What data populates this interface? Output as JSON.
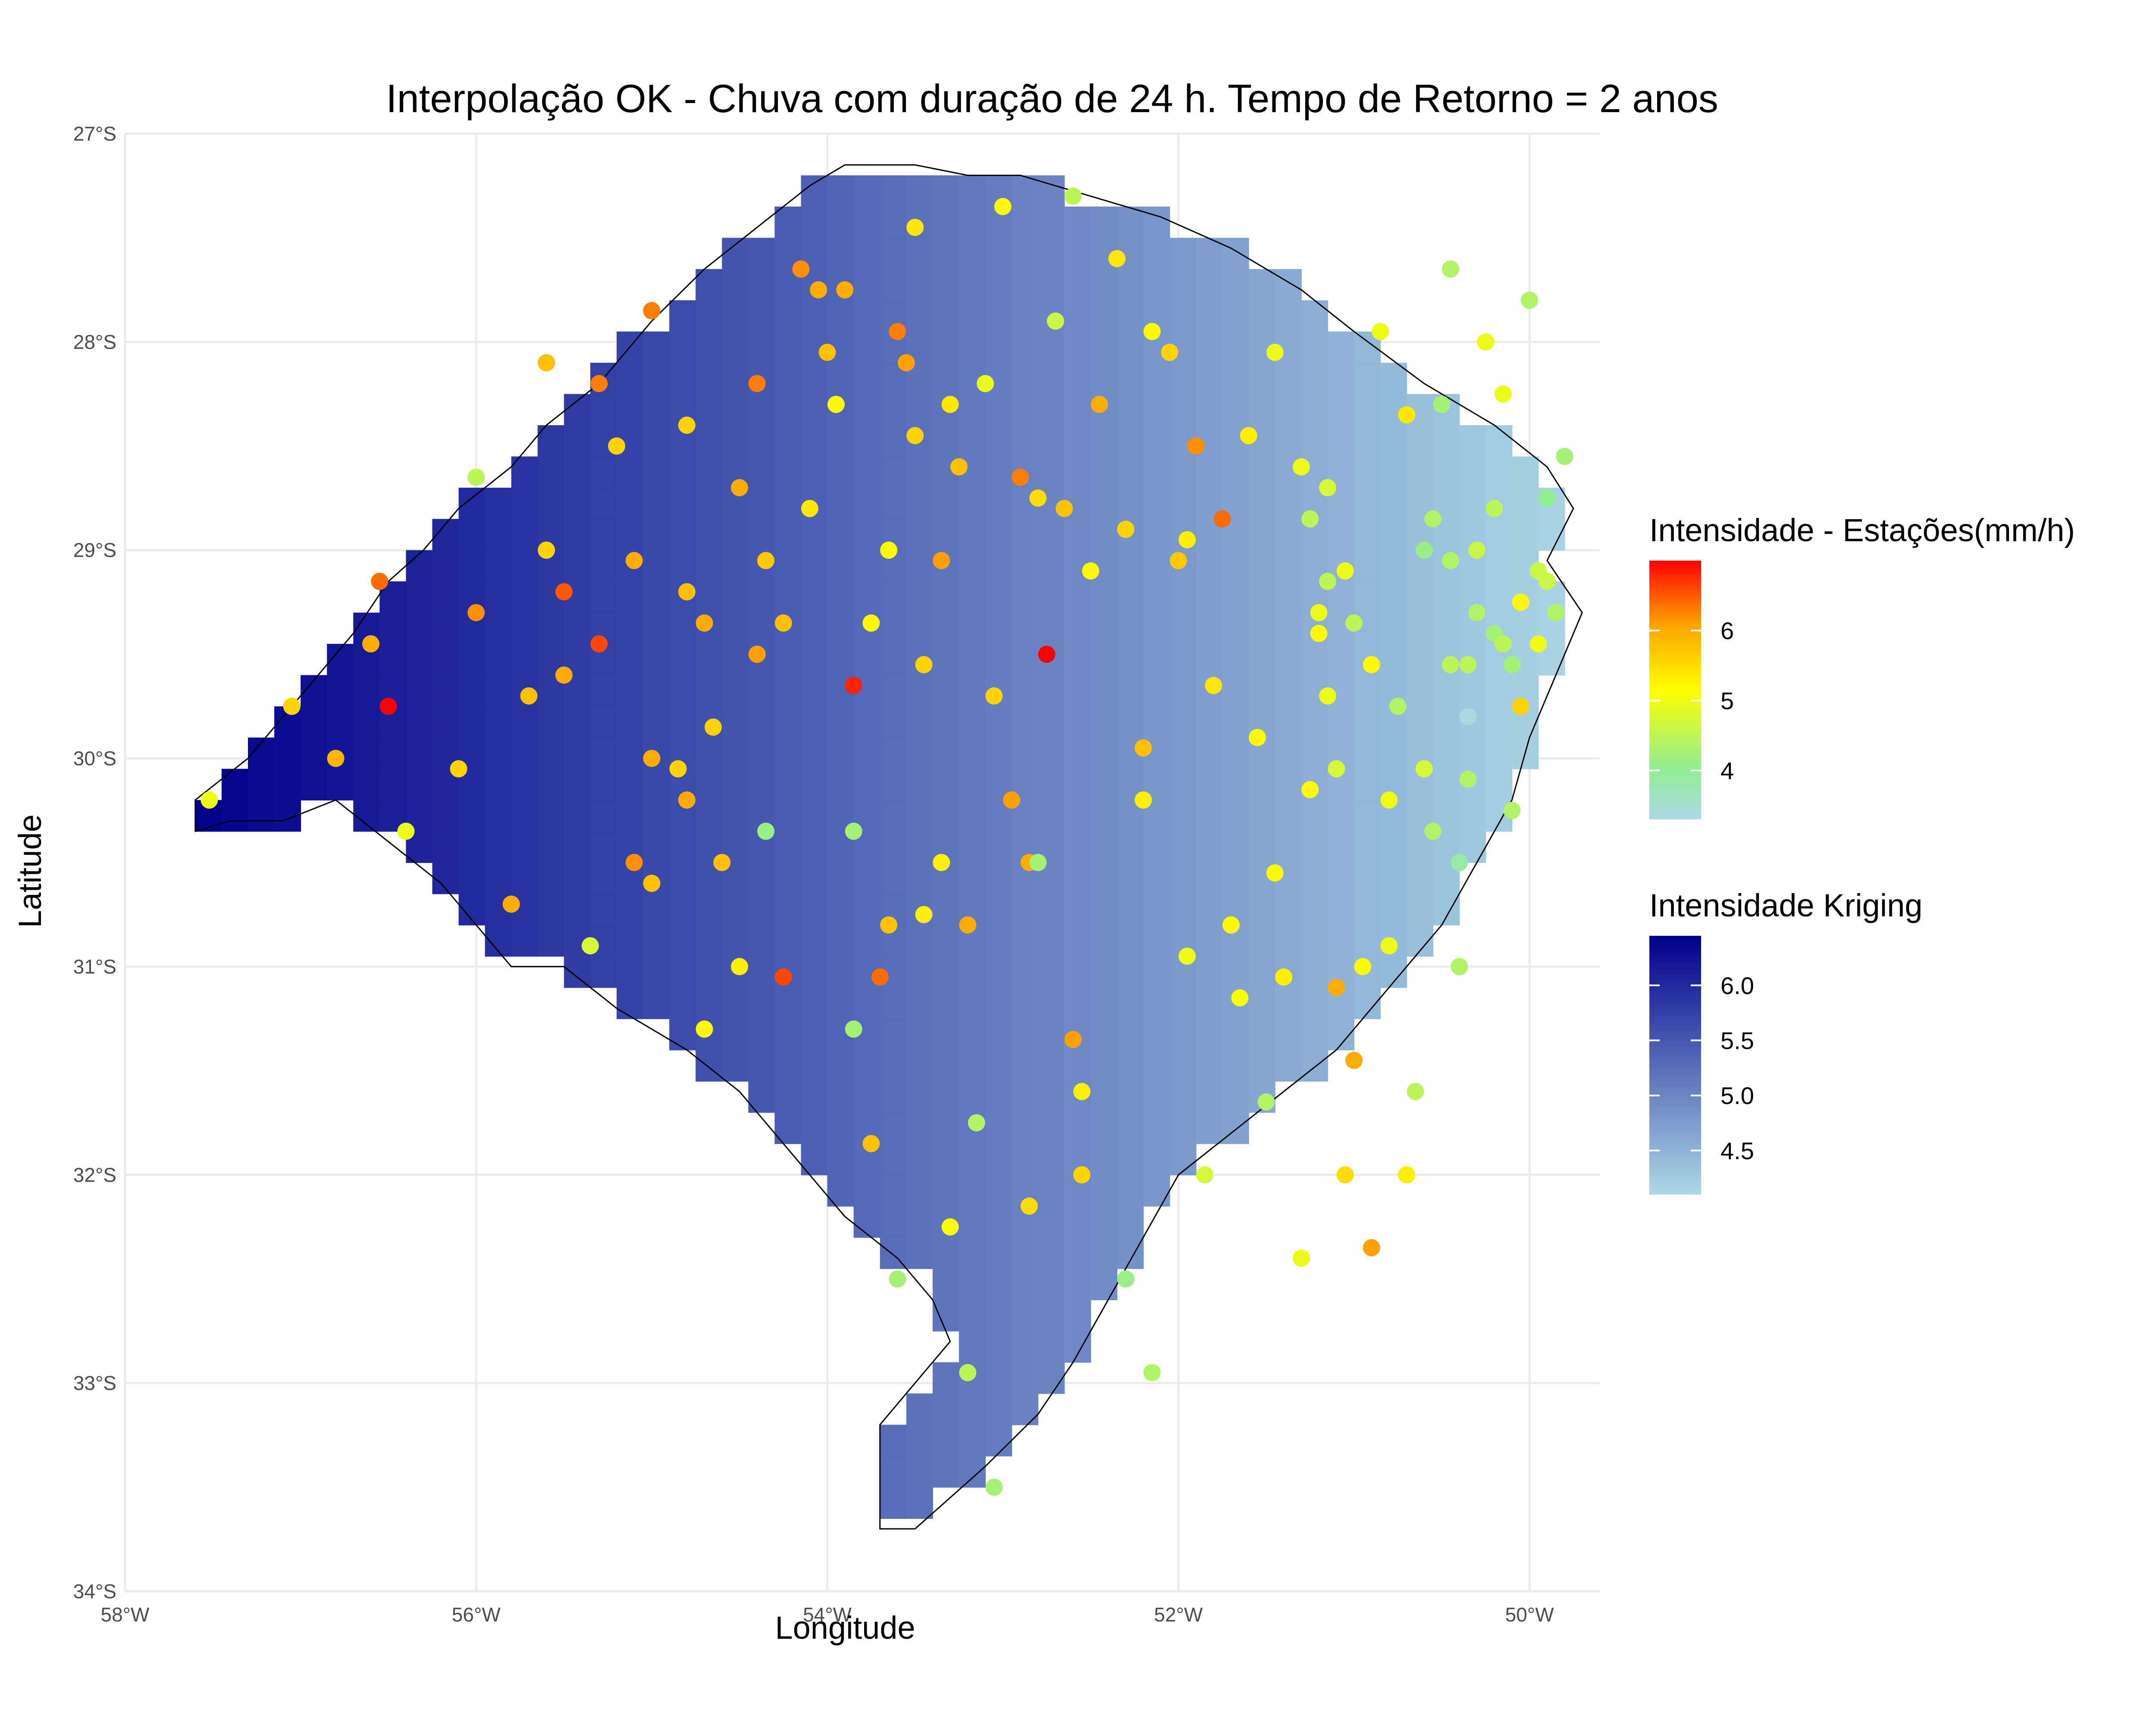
{
  "title": "Interpolação OK - Chuva com duração de 24 h. Tempo de Retorno = 2 anos",
  "chart_data": {
    "type": "map",
    "xlabel": "Longitude",
    "ylabel": "Latitude",
    "xlim": [
      -58,
      -49.6
    ],
    "ylim": [
      -34,
      -27
    ],
    "x_ticks": [
      {
        "value": -58,
        "label": "58°W"
      },
      {
        "value": -56,
        "label": "56°W"
      },
      {
        "value": -54,
        "label": "54°W"
      },
      {
        "value": -52,
        "label": "52°W"
      },
      {
        "value": -50,
        "label": "50°W"
      }
    ],
    "y_ticks": [
      {
        "value": -27,
        "label": "27°S"
      },
      {
        "value": -28,
        "label": "28°S"
      },
      {
        "value": -29,
        "label": "29°S"
      },
      {
        "value": -30,
        "label": "30°S"
      },
      {
        "value": -31,
        "label": "31°S"
      },
      {
        "value": -32,
        "label": "32°S"
      },
      {
        "value": -33,
        "label": "33°S"
      },
      {
        "value": -34,
        "label": "34°S"
      }
    ],
    "grid": true,
    "raster": {
      "name": "Intensidade Kriging",
      "cell_size_deg": 0.15,
      "trend": {
        "west_lon": -57.6,
        "west_value": 6.45,
        "east_lon": -49.7,
        "east_value": 4.1
      },
      "colors": [
        "#00008b",
        "#add8e6"
      ],
      "legend_ticks": [
        6.0,
        5.5,
        5.0,
        4.5
      ],
      "range": [
        4.1,
        6.45
      ],
      "boundary_lonlat": [
        [
          -57.6,
          -30.2
        ],
        [
          -57.3,
          -30.0
        ],
        [
          -57.1,
          -29.8
        ],
        [
          -56.9,
          -29.6
        ],
        [
          -56.7,
          -29.4
        ],
        [
          -56.5,
          -29.15
        ],
        [
          -56.3,
          -29.0
        ],
        [
          -56.1,
          -28.8
        ],
        [
          -55.8,
          -28.6
        ],
        [
          -55.6,
          -28.4
        ],
        [
          -55.3,
          -28.2
        ],
        [
          -55.0,
          -27.9
        ],
        [
          -54.7,
          -27.65
        ],
        [
          -54.4,
          -27.45
        ],
        [
          -54.1,
          -27.25
        ],
        [
          -53.9,
          -27.15
        ],
        [
          -53.5,
          -27.15
        ],
        [
          -53.2,
          -27.2
        ],
        [
          -52.9,
          -27.2
        ],
        [
          -52.5,
          -27.3
        ],
        [
          -52.1,
          -27.4
        ],
        [
          -51.7,
          -27.55
        ],
        [
          -51.3,
          -27.75
        ],
        [
          -51.0,
          -27.95
        ],
        [
          -50.6,
          -28.2
        ],
        [
          -50.2,
          -28.4
        ],
        [
          -49.9,
          -28.6
        ],
        [
          -49.75,
          -28.8
        ],
        [
          -49.9,
          -29.05
        ],
        [
          -49.7,
          -29.3
        ],
        [
          -49.8,
          -29.5
        ],
        [
          -50.0,
          -29.9
        ],
        [
          -50.1,
          -30.2
        ],
        [
          -50.3,
          -30.5
        ],
        [
          -50.5,
          -30.8
        ],
        [
          -50.8,
          -31.1
        ],
        [
          -51.1,
          -31.4
        ],
        [
          -51.4,
          -31.6
        ],
        [
          -51.7,
          -31.8
        ],
        [
          -52.0,
          -32.0
        ],
        [
          -52.2,
          -32.3
        ],
        [
          -52.4,
          -32.6
        ],
        [
          -52.6,
          -32.9
        ],
        [
          -52.8,
          -33.15
        ],
        [
          -53.1,
          -33.4
        ],
        [
          -53.3,
          -33.55
        ],
        [
          -53.5,
          -33.7
        ],
        [
          -53.7,
          -33.7
        ],
        [
          -53.7,
          -33.2
        ],
        [
          -53.5,
          -33.0
        ],
        [
          -53.3,
          -32.8
        ],
        [
          -53.4,
          -32.6
        ],
        [
          -53.6,
          -32.4
        ],
        [
          -53.9,
          -32.2
        ],
        [
          -54.2,
          -31.9
        ],
        [
          -54.5,
          -31.6
        ],
        [
          -54.8,
          -31.4
        ],
        [
          -55.2,
          -31.2
        ],
        [
          -55.5,
          -31.0
        ],
        [
          -55.8,
          -31.0
        ],
        [
          -56.0,
          -30.8
        ],
        [
          -56.2,
          -30.6
        ],
        [
          -56.5,
          -30.4
        ],
        [
          -56.8,
          -30.2
        ],
        [
          -57.1,
          -30.3
        ],
        [
          -57.4,
          -30.3
        ],
        [
          -57.6,
          -30.35
        ]
      ]
    },
    "stations": {
      "name": "Intensidade - Estações(mm/h)",
      "colors": [
        "#add8e6",
        "#90ee90",
        "#ffff00",
        "#ffa500",
        "#ff0000"
      ],
      "range": [
        3.3,
        7.0
      ],
      "legend_ticks": [
        6,
        5,
        4
      ],
      "points": [
        [
          -57.52,
          -30.2,
          5.0
        ],
        [
          -57.05,
          -29.75,
          5.6
        ],
        [
          -56.8,
          -30.0,
          5.9
        ],
        [
          -56.6,
          -29.45,
          6.0
        ],
        [
          -56.5,
          -29.75,
          7.0
        ],
        [
          -56.4,
          -30.35,
          5.0
        ],
        [
          -56.55,
          -29.15,
          6.4
        ],
        [
          -56.0,
          -29.3,
          6.2
        ],
        [
          -56.0,
          -28.65,
          4.6
        ],
        [
          -56.1,
          -30.05,
          5.6
        ],
        [
          -55.8,
          -30.7,
          6.0
        ],
        [
          -55.7,
          -29.7,
          5.8
        ],
        [
          -55.6,
          -29.0,
          5.6
        ],
        [
          -55.5,
          -29.6,
          6.0
        ],
        [
          -55.5,
          -29.2,
          6.5
        ],
        [
          -55.6,
          -28.1,
          5.8
        ],
        [
          -55.3,
          -28.2,
          6.3
        ],
        [
          -55.3,
          -29.45,
          6.6
        ],
        [
          -55.2,
          -28.5,
          5.6
        ],
        [
          -55.1,
          -29.05,
          6.0
        ],
        [
          -55.1,
          -30.5,
          6.2
        ],
        [
          -55.0,
          -27.85,
          6.3
        ],
        [
          -55.0,
          -30.0,
          6.0
        ],
        [
          -54.8,
          -28.4,
          5.6
        ],
        [
          -54.8,
          -29.2,
          5.8
        ],
        [
          -54.8,
          -30.2,
          6.0
        ],
        [
          -54.65,
          -29.85,
          5.6
        ],
        [
          -54.6,
          -30.5,
          5.8
        ],
        [
          -54.7,
          -29.35,
          6.0
        ],
        [
          -54.5,
          -28.7,
          6.0
        ],
        [
          -54.4,
          -29.5,
          6.1
        ],
        [
          -54.5,
          -31.0,
          5.3
        ],
        [
          -54.4,
          -28.2,
          6.3
        ],
        [
          -54.35,
          -29.05,
          5.7
        ],
        [
          -54.25,
          -29.35,
          5.8
        ],
        [
          -54.15,
          -27.65,
          6.2
        ],
        [
          -54.1,
          -28.8,
          5.4
        ],
        [
          -54.05,
          -27.75,
          6.0
        ],
        [
          -54.0,
          -28.05,
          5.8
        ],
        [
          -53.95,
          -28.3,
          5.2
        ],
        [
          -53.9,
          -27.75,
          6.0
        ],
        [
          -53.85,
          -29.65,
          6.8
        ],
        [
          -53.85,
          -30.35,
          4.4
        ],
        [
          -53.85,
          -31.3,
          4.4
        ],
        [
          -53.75,
          -29.35,
          5.2
        ],
        [
          -53.7,
          -31.05,
          6.4
        ],
        [
          -53.65,
          -29.0,
          5.2
        ],
        [
          -53.6,
          -27.95,
          6.3
        ],
        [
          -53.55,
          -28.1,
          6.1
        ],
        [
          -53.5,
          -28.45,
          5.6
        ],
        [
          -53.5,
          -27.45,
          5.4
        ],
        [
          -53.45,
          -30.75,
          5.3
        ],
        [
          -53.35,
          -29.05,
          6.1
        ],
        [
          -53.3,
          -28.3,
          5.4
        ],
        [
          -53.25,
          -28.6,
          5.8
        ],
        [
          -53.2,
          -30.8,
          6.0
        ],
        [
          -53.15,
          -31.75,
          4.5
        ],
        [
          -53.1,
          -28.2,
          5.0
        ],
        [
          -53.05,
          -29.7,
          5.6
        ],
        [
          -53.0,
          -27.35,
          5.2
        ],
        [
          -52.95,
          -30.2,
          6.1
        ],
        [
          -52.9,
          -28.65,
          6.3
        ],
        [
          -52.85,
          -30.5,
          6.0
        ],
        [
          -52.8,
          -30.5,
          4.4
        ],
        [
          -52.8,
          -28.75,
          5.5
        ],
        [
          -52.75,
          -29.5,
          7.0
        ],
        [
          -52.7,
          -27.9,
          4.7
        ],
        [
          -52.65,
          -28.8,
          5.8
        ],
        [
          -52.6,
          -31.35,
          6.1
        ],
        [
          -52.55,
          -32.0,
          5.6
        ],
        [
          -52.5,
          -29.1,
          5.2
        ],
        [
          -52.45,
          -28.3,
          6.0
        ],
        [
          -52.35,
          -27.6,
          5.4
        ],
        [
          -52.3,
          -32.5,
          4.3
        ],
        [
          -52.2,
          -29.95,
          5.8
        ],
        [
          -52.2,
          -30.2,
          5.3
        ],
        [
          -52.15,
          -27.95,
          5.2
        ],
        [
          -52.15,
          -32.95,
          4.5
        ],
        [
          -52.05,
          -28.05,
          5.6
        ],
        [
          -52.0,
          -29.05,
          5.7
        ],
        [
          -51.95,
          -28.95,
          5.3
        ],
        [
          -51.95,
          -30.95,
          5.0
        ],
        [
          -51.9,
          -28.5,
          6.2
        ],
        [
          -51.85,
          -32.0,
          4.8
        ],
        [
          -51.8,
          -29.65,
          5.4
        ],
        [
          -51.75,
          -28.85,
          6.4
        ],
        [
          -51.7,
          -30.8,
          5.2
        ],
        [
          -51.65,
          -31.15,
          5.1
        ],
        [
          -51.6,
          -28.45,
          5.3
        ],
        [
          -51.55,
          -29.9,
          5.2
        ],
        [
          -51.5,
          -31.65,
          4.5
        ],
        [
          -51.45,
          -30.55,
          5.2
        ],
        [
          -51.45,
          -28.05,
          5.0
        ],
        [
          -51.4,
          -31.05,
          5.3
        ],
        [
          -51.3,
          -32.4,
          5.0
        ],
        [
          -51.25,
          -30.15,
          5.2
        ],
        [
          -51.2,
          -29.3,
          5.0
        ],
        [
          -51.15,
          -29.15,
          4.6
        ],
        [
          -51.15,
          -28.7,
          4.8
        ],
        [
          -51.1,
          -31.1,
          6.0
        ],
        [
          -51.05,
          -32.0,
          5.5
        ],
        [
          -51.05,
          -29.1,
          5.0
        ],
        [
          -51.0,
          -31.45,
          6.0
        ],
        [
          -50.95,
          -31.0,
          5.2
        ],
        [
          -50.9,
          -32.35,
          6.1
        ],
        [
          -50.9,
          -29.55,
          5.2
        ],
        [
          -50.85,
          -27.95,
          5.0
        ],
        [
          -50.8,
          -30.2,
          5.0
        ],
        [
          -50.8,
          -30.9,
          5.0
        ],
        [
          -50.75,
          -29.75,
          4.5
        ],
        [
          -50.7,
          -28.35,
          5.4
        ],
        [
          -50.7,
          -32.0,
          5.3
        ],
        [
          -50.65,
          -31.6,
          4.6
        ],
        [
          -50.6,
          -30.05,
          4.8
        ],
        [
          -50.6,
          -29.0,
          4.3
        ],
        [
          -50.55,
          -30.35,
          4.5
        ],
        [
          -50.55,
          -28.85,
          4.5
        ],
        [
          -50.5,
          -28.3,
          4.6
        ],
        [
          -50.45,
          -29.55,
          4.6
        ],
        [
          -50.45,
          -27.65,
          4.5
        ],
        [
          -50.4,
          -31.0,
          4.5
        ],
        [
          -50.4,
          -30.5,
          4.0
        ],
        [
          -50.35,
          -29.8,
          3.4
        ],
        [
          -50.35,
          -30.1,
          4.5
        ],
        [
          -50.3,
          -29.0,
          4.7
        ],
        [
          -50.3,
          -29.3,
          4.5
        ],
        [
          -50.25,
          -28.0,
          5.0
        ],
        [
          -50.2,
          -28.8,
          4.6
        ],
        [
          -50.15,
          -28.25,
          5.0
        ],
        [
          -50.1,
          -29.55,
          4.4
        ],
        [
          -50.1,
          -30.25,
          4.5
        ],
        [
          -50.05,
          -29.25,
          5.2
        ],
        [
          -50.0,
          -27.8,
          4.5
        ],
        [
          -49.95,
          -29.1,
          4.7
        ],
        [
          -49.9,
          -28.75,
          4.2
        ],
        [
          -49.85,
          -29.3,
          4.5
        ],
        [
          -49.8,
          -28.55,
          4.4
        ],
        [
          -49.75,
          -29.4,
          4.4
        ],
        [
          -49.7,
          -28.95,
          4.5
        ],
        [
          -49.7,
          -29.75,
          4.5
        ],
        [
          -49.65,
          -28.75,
          4.1
        ],
        [
          -49.6,
          -29.55,
          5.0
        ],
        [
          -49.6,
          -29.1,
          4.5
        ],
        [
          -49.55,
          -28.45,
          4.3
        ],
        [
          -49.5,
          -29.65,
          4.2
        ],
        [
          -49.45,
          -28.7,
          4.2
        ],
        [
          -49.4,
          -29.3,
          4.6
        ],
        [
          -49.35,
          -28.9,
          4.8
        ],
        [
          -49.3,
          -30.0,
          3.9
        ],
        [
          -49.25,
          -29.4,
          4.4
        ],
        [
          -49.2,
          -28.8,
          4.5
        ],
        [
          -49.15,
          -29.6,
          5.0
        ],
        [
          -49.1,
          -28.65,
          4.8
        ],
        [
          -49.05,
          -29.45,
          4.7
        ],
        [
          -49.0,
          -29.2,
          4.3
        ],
        [
          -48.95,
          -28.9,
          4.6
        ],
        [
          -48.9,
          -29.35,
          5.0
        ],
        [
          -50.5,
          -28.3,
          4.4
        ],
        [
          -50.45,
          -29.05,
          4.5
        ],
        [
          -50.35,
          -29.55,
          4.6
        ],
        [
          -50.2,
          -29.4,
          4.4
        ],
        [
          -50.15,
          -29.45,
          4.6
        ],
        [
          -50.05,
          -29.75,
          5.6
        ],
        [
          -49.95,
          -29.45,
          5.0
        ],
        [
          -49.9,
          -29.15,
          4.7
        ],
        [
          -51.3,
          -28.6,
          5.0
        ],
        [
          -51.25,
          -28.85,
          4.6
        ],
        [
          -51.2,
          -29.4,
          5.2
        ],
        [
          -51.15,
          -29.7,
          5.0
        ],
        [
          -51.1,
          -30.05,
          4.8
        ],
        [
          -51.0,
          -29.35,
          4.6
        ],
        [
          -52.6,
          -27.3,
          4.6
        ],
        [
          -52.3,
          -28.9,
          5.6
        ],
        [
          -52.55,
          -31.6,
          5.3
        ],
        [
          -53.6,
          -32.5,
          4.4
        ],
        [
          -53.3,
          -32.25,
          5.1
        ],
        [
          -53.2,
          -32.95,
          4.6
        ],
        [
          -53.05,
          -33.5,
          4.4
        ],
        [
          -52.85,
          -32.15,
          5.5
        ],
        [
          -53.75,
          -31.85,
          5.8
        ],
        [
          -53.45,
          -29.55,
          5.6
        ],
        [
          -53.35,
          -30.5,
          5.3
        ],
        [
          -53.65,
          -30.8,
          5.8
        ],
        [
          -54.25,
          -31.05,
          6.6
        ],
        [
          -54.7,
          -31.3,
          5.2
        ],
        [
          -54.85,
          -30.05,
          5.6
        ],
        [
          -55.0,
          -30.6,
          5.8
        ],
        [
          -55.35,
          -30.9,
          4.8
        ],
        [
          -54.35,
          -30.35,
          4.3
        ]
      ]
    }
  }
}
